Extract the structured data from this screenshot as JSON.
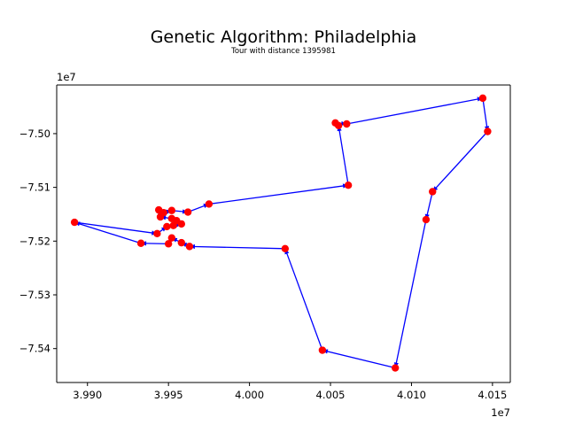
{
  "chart_data": {
    "type": "line",
    "title": "Genetic Algorithm: Philadelphia",
    "subtitle": "Tour with distance 1395981",
    "xlabel": "",
    "ylabel": "",
    "x_offset_label": "1e7",
    "y_offset_label": "1e7",
    "xlim": [
      39.881,
      40.161
    ],
    "ylim": [
      -75.4631,
      -74.9095
    ],
    "x_ticks": [
      {
        "value": 39.9,
        "label": "3.990"
      },
      {
        "value": 39.95,
        "label": "3.995"
      },
      {
        "value": 40.0,
        "label": "4.000"
      },
      {
        "value": 40.05,
        "label": "4.005"
      },
      {
        "value": 40.1,
        "label": "4.010"
      },
      {
        "value": 40.15,
        "label": "4.015"
      }
    ],
    "y_ticks": [
      {
        "value": -75.0,
        "label": "−7.50"
      },
      {
        "value": -75.1,
        "label": "−7.51"
      },
      {
        "value": -75.2,
        "label": "−7.52"
      },
      {
        "value": -75.3,
        "label": "−7.53"
      },
      {
        "value": -75.4,
        "label": "−7.54"
      }
    ],
    "grid": false,
    "colors": {
      "route": "#0000ff",
      "city": "#ff0000",
      "axes": "#000000"
    },
    "series": [
      {
        "marker": "o",
        "tour": [
          [
            39.892,
            -75.165
          ],
          [
            39.943,
            -75.186
          ],
          [
            39.949,
            -75.173
          ],
          [
            39.953,
            -75.171
          ],
          [
            39.958,
            -75.168
          ],
          [
            39.955,
            -75.162
          ],
          [
            39.952,
            -75.158
          ],
          [
            39.945,
            -75.155
          ],
          [
            39.944,
            -75.142
          ],
          [
            39.947,
            -75.147
          ],
          [
            39.952,
            -75.143
          ],
          [
            39.962,
            -75.146
          ],
          [
            39.975,
            -75.131
          ],
          [
            40.061,
            -75.096
          ],
          [
            40.055,
            -74.985
          ],
          [
            40.053,
            -74.98
          ],
          [
            40.06,
            -74.982
          ],
          [
            40.144,
            -74.934
          ],
          [
            40.147,
            -74.996
          ],
          [
            40.113,
            -75.108
          ],
          [
            40.109,
            -75.16
          ],
          [
            40.09,
            -75.436
          ],
          [
            40.045,
            -75.403
          ],
          [
            40.022,
            -75.214
          ],
          [
            39.963,
            -75.21
          ],
          [
            39.958,
            -75.203
          ],
          [
            39.952,
            -75.194
          ],
          [
            39.95,
            -75.205
          ],
          [
            39.933,
            -75.204
          ],
          [
            39.892,
            -75.165
          ]
        ]
      }
    ]
  }
}
